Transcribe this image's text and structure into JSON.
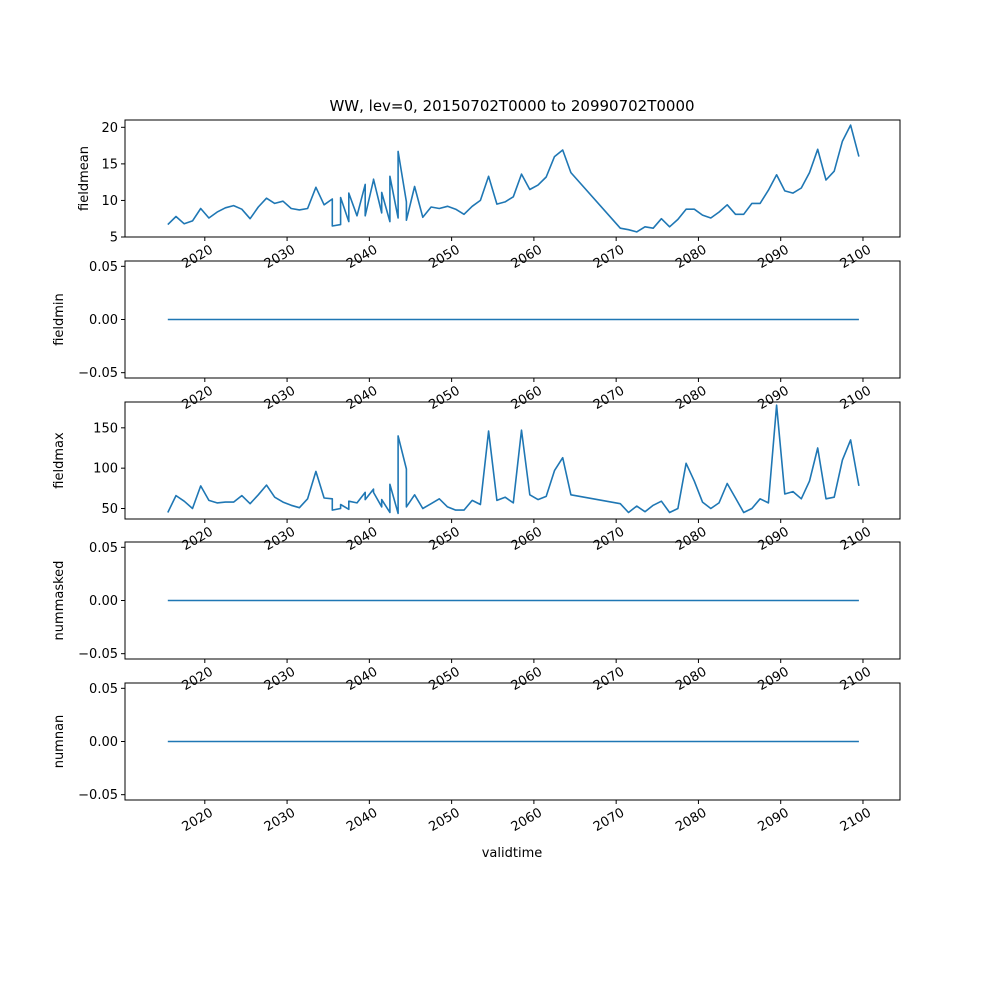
{
  "chart_data": {
    "type": "line",
    "title": "WW, lev=0, 20150702T0000 to 20990702T0000",
    "xlabel": "validtime",
    "x_tick_labels": [
      "2020",
      "2030",
      "2040",
      "2050",
      "2060",
      "2070",
      "2080",
      "2090",
      "2100"
    ],
    "x_tick_values": [
      2020,
      2030,
      2040,
      2050,
      2060,
      2070,
      2080,
      2090,
      2100
    ],
    "xlim": [
      2010.3,
      2104.5
    ],
    "grid": false,
    "legend": "none",
    "colors": {
      "line": "#1f77b4"
    },
    "panels": [
      {
        "name": "fieldmean",
        "ylabel": "fieldmean",
        "ylim": [
          5,
          21
        ],
        "y_ticks": [
          5,
          10,
          15,
          20
        ],
        "y_tick_labels": [
          "5",
          "10",
          "15",
          "20"
        ],
        "x": [
          2015.5,
          2016.5,
          2017.5,
          2018.5,
          2019.5,
          2020.5,
          2021.5,
          2022.5,
          2023.5,
          2024.5,
          2025.5,
          2026.5,
          2027.5,
          2028.5,
          2029.5,
          2030.5,
          2031.5,
          2032.5,
          2033.5,
          2034.5,
          2035.5,
          2035.5,
          2036.5,
          2036.5,
          2037.5,
          2037.5,
          2038.5,
          2039.5,
          2039.5,
          2040.5,
          2040.5,
          2041.5,
          2041.5,
          2042.5,
          2042.5,
          2043.5,
          2043.5,
          2044.5,
          2044.5,
          2045.5,
          2046.5,
          2047.5,
          2048.5,
          2049.5,
          2050.5,
          2051.5,
          2052.5,
          2053.5,
          2054.5,
          2055.5,
          2056.5,
          2057.5,
          2058.5,
          2059.5,
          2060.5,
          2061.5,
          2062.5,
          2063.5,
          2064.5,
          2070.5,
          2071.5,
          2072.5,
          2073.5,
          2074.5,
          2075.5,
          2076.5,
          2077.5,
          2078.5,
          2079.5,
          2080.5,
          2081.5,
          2082.5,
          2083.5,
          2084.5,
          2085.5,
          2086.5,
          2087.5,
          2088.5,
          2089.5,
          2090.5,
          2091.5,
          2092.5,
          2093.5,
          2094.5,
          2095.5,
          2096.5,
          2097.5,
          2098.5,
          2099.5
        ],
        "y": [
          6.7,
          7.8,
          6.8,
          7.2,
          8.9,
          7.6,
          8.4,
          9.0,
          9.3,
          8.8,
          7.5,
          9.1,
          10.3,
          9.6,
          9.9,
          8.9,
          8.7,
          8.9,
          11.8,
          9.4,
          10.2,
          6.5,
          6.7,
          10.4,
          7.1,
          11.0,
          7.9,
          12.2,
          7.9,
          12.8,
          12.9,
          8.3,
          11.1,
          7.1,
          13.3,
          7.6,
          16.7,
          9.8,
          7.3,
          11.9,
          7.7,
          9.1,
          8.9,
          9.2,
          8.8,
          8.1,
          9.2,
          10.0,
          13.3,
          9.5,
          9.8,
          10.5,
          13.6,
          11.5,
          12.1,
          13.2,
          16.0,
          16.9,
          13.8,
          6.2,
          6.0,
          5.7,
          6.4,
          6.2,
          7.5,
          6.4,
          7.4,
          8.8,
          8.8,
          8.0,
          7.6,
          8.4,
          9.4,
          8.1,
          8.1,
          9.6,
          9.6,
          11.4,
          13.5,
          11.3,
          11.0,
          11.7,
          13.8,
          17.0,
          12.8,
          14.0,
          18.1,
          20.3,
          16.0
        ]
      },
      {
        "name": "fieldmin",
        "ylabel": "fieldmin",
        "ylim": [
          -0.055,
          0.055
        ],
        "y_ticks": [
          -0.05,
          0,
          0.05
        ],
        "y_tick_labels": [
          "−0.05",
          "0.00",
          "0.05"
        ],
        "x": [
          2015.5,
          2099.5
        ],
        "y": [
          0,
          0
        ]
      },
      {
        "name": "fieldmax",
        "ylabel": "fieldmax",
        "ylim": [
          37,
          182
        ],
        "y_ticks": [
          50,
          100,
          150
        ],
        "y_tick_labels": [
          "50",
          "100",
          "150"
        ],
        "x": [
          2015.5,
          2016.5,
          2017.5,
          2018.5,
          2019.5,
          2020.5,
          2021.5,
          2022.5,
          2023.5,
          2024.5,
          2025.5,
          2026.5,
          2027.5,
          2028.5,
          2029.5,
          2030.5,
          2031.5,
          2032.5,
          2033.5,
          2034.5,
          2035.5,
          2035.5,
          2036.5,
          2036.5,
          2037.5,
          2037.5,
          2038.5,
          2039.5,
          2039.5,
          2040.5,
          2040.5,
          2041.5,
          2041.5,
          2042.5,
          2042.5,
          2043.5,
          2043.5,
          2044.5,
          2044.5,
          2045.5,
          2046.5,
          2047.5,
          2048.5,
          2049.5,
          2050.5,
          2051.5,
          2052.5,
          2053.5,
          2054.5,
          2055.5,
          2056.5,
          2057.5,
          2058.5,
          2059.5,
          2060.5,
          2061.5,
          2062.5,
          2063.5,
          2064.5,
          2070.5,
          2071.5,
          2072.5,
          2073.5,
          2074.5,
          2075.5,
          2076.5,
          2077.5,
          2078.5,
          2079.5,
          2080.5,
          2081.5,
          2082.5,
          2083.5,
          2084.5,
          2085.5,
          2086.5,
          2087.5,
          2088.5,
          2089.5,
          2090.5,
          2091.5,
          2092.5,
          2093.5,
          2094.5,
          2095.5,
          2096.5,
          2097.5,
          2098.5,
          2099.5
        ],
        "y": [
          45,
          66,
          59,
          50,
          78,
          60,
          57,
          58,
          58,
          66,
          56,
          67,
          79,
          64,
          58,
          54,
          51,
          62,
          96,
          63,
          62,
          48,
          50,
          55,
          49,
          59,
          57,
          70,
          61,
          74,
          70,
          52,
          61,
          45,
          80,
          44,
          140,
          99,
          52,
          67,
          50,
          56,
          62,
          52,
          48,
          48,
          60,
          55,
          146,
          60,
          64,
          57,
          147,
          67,
          61,
          65,
          97,
          113,
          67,
          56,
          45,
          53,
          46,
          54,
          59,
          45,
          50,
          106,
          84,
          58,
          50,
          57,
          81,
          63,
          45,
          50,
          62,
          57,
          178,
          68,
          71,
          62,
          84,
          125,
          62,
          64,
          110,
          135,
          78
        ]
      },
      {
        "name": "nummasked",
        "ylabel": "nummasked",
        "ylim": [
          -0.055,
          0.055
        ],
        "y_ticks": [
          -0.05,
          0,
          0.05
        ],
        "y_tick_labels": [
          "−0.05",
          "0.00",
          "0.05"
        ],
        "x": [
          2015.5,
          2099.5
        ],
        "y": [
          0,
          0
        ]
      },
      {
        "name": "numnan",
        "ylabel": "numnan",
        "ylim": [
          -0.055,
          0.055
        ],
        "y_ticks": [
          -0.05,
          0,
          0.05
        ],
        "y_tick_labels": [
          "−0.05",
          "0.00",
          "0.05"
        ],
        "x": [
          2015.5,
          2099.5
        ],
        "y": [
          0,
          0
        ]
      }
    ]
  }
}
